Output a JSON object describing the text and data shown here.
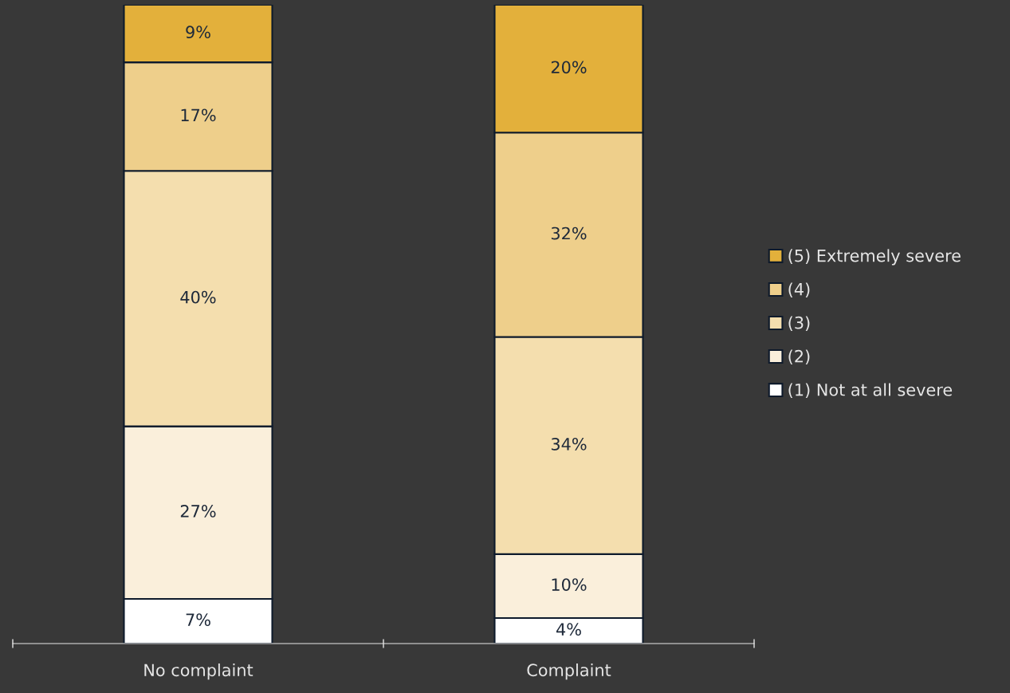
{
  "chart_data": {
    "type": "bar",
    "stacked": true,
    "categories": [
      "No complaint",
      "Complaint"
    ],
    "series": [
      {
        "name": "(1) Not at all severe",
        "color": "#ffffff",
        "values": [
          7,
          4
        ],
        "value_labels": [
          "7%",
          "4%"
        ]
      },
      {
        "name": "(2)",
        "color": "#faefdb",
        "values": [
          27,
          10
        ],
        "value_labels": [
          "27%",
          "10%"
        ]
      },
      {
        "name": "(3)",
        "color": "#f4deae",
        "values": [
          40,
          34
        ],
        "value_labels": [
          "40%",
          "34%"
        ]
      },
      {
        "name": "(4)",
        "color": "#eecf8b",
        "values": [
          17,
          32
        ],
        "value_labels": [
          "17%",
          "32%"
        ]
      },
      {
        "name": "(5) Extremely severe",
        "color": "#e3b03b",
        "values": [
          9,
          20
        ],
        "value_labels": [
          "9%",
          "20%"
        ]
      }
    ],
    "legend": "right",
    "grid": false
  }
}
